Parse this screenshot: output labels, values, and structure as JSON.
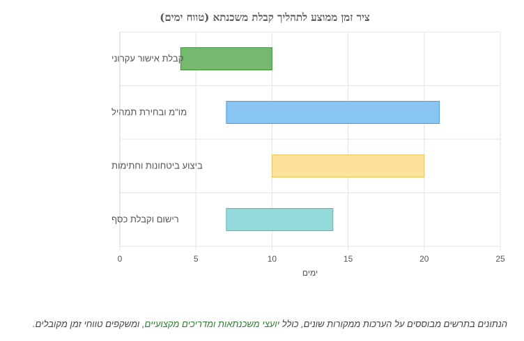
{
  "chart_data": {
    "type": "bar",
    "orientation": "horizontal-range",
    "title": "ציר זמן ממוצע לתהליך קבלת משכנתא (טווח ימים)",
    "xlabel": "ימים",
    "ylabel": "",
    "xlim": [
      0,
      25
    ],
    "xticks": [
      "0",
      "5",
      "10",
      "15",
      "20",
      "25"
    ],
    "grid": true,
    "categories": [
      "קבלת אישור עקרוני",
      "מו\"מ ובחירת תמהיל",
      "ביצוע ביטחונות וחתימות",
      "רישום וקבלת כסף"
    ],
    "ranges": [
      [
        4,
        10
      ],
      [
        7,
        21
      ],
      [
        10,
        20
      ],
      [
        7,
        14
      ]
    ],
    "colors": [
      {
        "fill": "#75b96f",
        "stroke": "#3f8f3a"
      },
      {
        "fill": "#88c5f2",
        "stroke": "#4a9fd8"
      },
      {
        "fill": "#fde29e",
        "stroke": "#efc45a"
      },
      {
        "fill": "#94d9d9",
        "stroke": "#4fb9b9"
      }
    ]
  },
  "footnote": {
    "before": "הנתונים בתרשים מבוססים על הערכות ממקורות שונים, כולל ",
    "link": "יועצי משכנתאות ומדריכים מקצועיים",
    "after": ", ומשקפים טווחי זמן מקובלים."
  }
}
